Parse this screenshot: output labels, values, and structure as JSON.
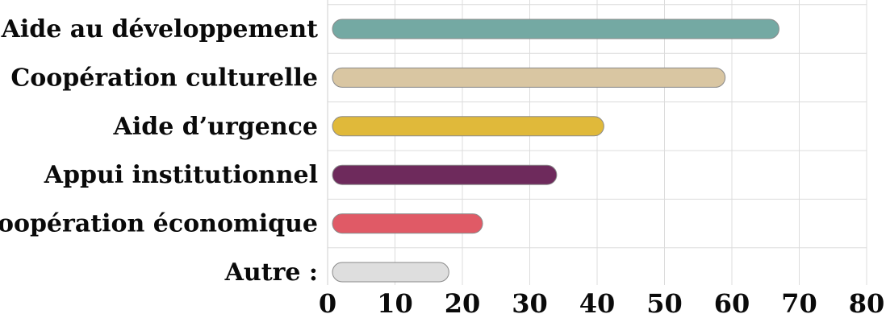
{
  "chart_data": {
    "type": "bar",
    "orientation": "horizontal",
    "title": "",
    "categories": [
      "Aide au développement",
      "Coopération culturelle",
      "Aide d’urgence",
      "Appui institutionnel",
      "Coopération économique",
      "Autre :"
    ],
    "values": [
      67,
      59,
      41,
      34,
      23,
      18
    ],
    "colors": [
      "#74a9a3",
      "#d9c6a2",
      "#e0b93a",
      "#6e2a5c",
      "#e05a66",
      "#dedede"
    ],
    "xlim": [
      0,
      80
    ],
    "xticks": [
      "0",
      "10",
      "20",
      "30",
      "40",
      "50",
      "60",
      "70",
      "80"
    ],
    "grid": true,
    "xlabel": "",
    "ylabel": ""
  }
}
